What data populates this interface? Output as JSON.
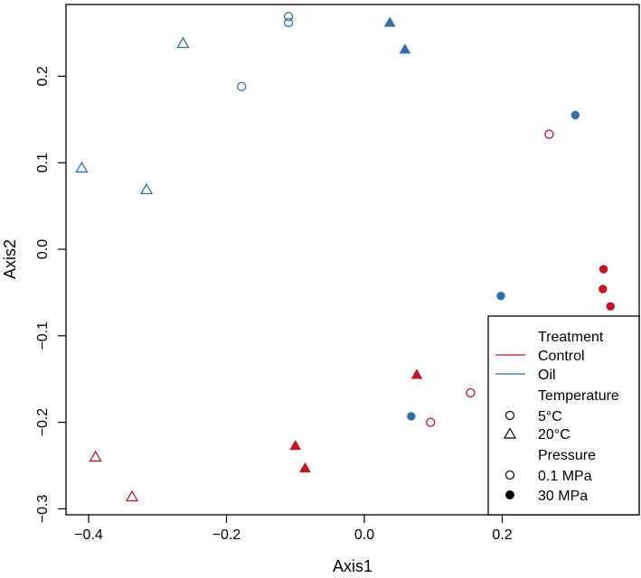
{
  "chart_data": {
    "type": "scatter",
    "title": "",
    "xlabel": "Axis1",
    "ylabel": "Axis2",
    "xlim": [
      -0.45,
      0.37
    ],
    "ylim": [
      -0.31,
      0.285
    ],
    "xticks": [
      -0.4,
      -0.2,
      0.0,
      0.2
    ],
    "xtick_labels": [
      "−0.4",
      "−0.2",
      "0.0",
      "0.2"
    ],
    "yticks": [
      -0.3,
      -0.2,
      -0.1,
      0.0,
      0.1,
      0.2
    ],
    "ytick_labels": [
      "−0.3",
      "−0.2",
      "−0.1",
      "0.0",
      "0.1",
      "0.2"
    ],
    "grid": false,
    "colors": {
      "Control": "#cc1126",
      "Oil": "#2f6fac"
    },
    "points": [
      {
        "x": -0.11,
        "y": 0.269,
        "treatment": "Oil",
        "temperature": "5°C",
        "pressure": "0.1 MPa"
      },
      {
        "x": -0.11,
        "y": 0.262,
        "treatment": "Oil",
        "temperature": "5°C",
        "pressure": "0.1 MPa"
      },
      {
        "x": -0.178,
        "y": 0.188,
        "treatment": "Oil",
        "temperature": "5°C",
        "pressure": "0.1 MPa"
      },
      {
        "x": -0.263,
        "y": 0.238,
        "treatment": "Oil",
        "temperature": "20°C",
        "pressure": "0.1 MPa"
      },
      {
        "x": -0.41,
        "y": 0.094,
        "treatment": "Oil",
        "temperature": "20°C",
        "pressure": "0.1 MPa"
      },
      {
        "x": -0.316,
        "y": 0.069,
        "treatment": "Oil",
        "temperature": "20°C",
        "pressure": "0.1 MPa"
      },
      {
        "x": 0.037,
        "y": 0.262,
        "treatment": "Oil",
        "temperature": "20°C",
        "pressure": "30 MPa"
      },
      {
        "x": 0.059,
        "y": 0.231,
        "treatment": "Oil",
        "temperature": "20°C",
        "pressure": "30 MPa"
      },
      {
        "x": 0.306,
        "y": 0.155,
        "treatment": "Oil",
        "temperature": "5°C",
        "pressure": "30 MPa"
      },
      {
        "x": 0.198,
        "y": -0.054,
        "treatment": "Oil",
        "temperature": "5°C",
        "pressure": "30 MPa"
      },
      {
        "x": 0.068,
        "y": -0.193,
        "treatment": "Oil",
        "temperature": "5°C",
        "pressure": "30 MPa"
      },
      {
        "x": 0.268,
        "y": 0.133,
        "treatment": "Control",
        "temperature": "5°C",
        "pressure": "0.1 MPa"
      },
      {
        "x": 0.154,
        "y": -0.166,
        "treatment": "Control",
        "temperature": "5°C",
        "pressure": "0.1 MPa"
      },
      {
        "x": 0.096,
        "y": -0.2,
        "treatment": "Control",
        "temperature": "5°C",
        "pressure": "0.1 MPa"
      },
      {
        "x": 0.347,
        "y": -0.023,
        "treatment": "Control",
        "temperature": "5°C",
        "pressure": "30 MPa"
      },
      {
        "x": 0.346,
        "y": -0.046,
        "treatment": "Control",
        "temperature": "5°C",
        "pressure": "30 MPa"
      },
      {
        "x": 0.357,
        "y": -0.066,
        "treatment": "Control",
        "temperature": "5°C",
        "pressure": "30 MPa"
      },
      {
        "x": 0.076,
        "y": -0.145,
        "treatment": "Control",
        "temperature": "20°C",
        "pressure": "30 MPa"
      },
      {
        "x": -0.1,
        "y": -0.227,
        "treatment": "Control",
        "temperature": "20°C",
        "pressure": "30 MPa"
      },
      {
        "x": -0.086,
        "y": -0.253,
        "treatment": "Control",
        "temperature": "20°C",
        "pressure": "30 MPa"
      },
      {
        "x": -0.39,
        "y": -0.24,
        "treatment": "Control",
        "temperature": "20°C",
        "pressure": "0.1 MPa"
      },
      {
        "x": -0.337,
        "y": -0.286,
        "treatment": "Control",
        "temperature": "20°C",
        "pressure": "0.1 MPa"
      }
    ],
    "legend": {
      "placement": "bottom-right",
      "treatment_title": "Treatment",
      "treatment_items": [
        "Control",
        "Oil"
      ],
      "temperature_title": "Temperature",
      "temperature_items": [
        "5°C",
        "20°C"
      ],
      "pressure_title": "Pressure",
      "pressure_items": [
        "0.1 MPa",
        "30 MPa"
      ]
    }
  }
}
